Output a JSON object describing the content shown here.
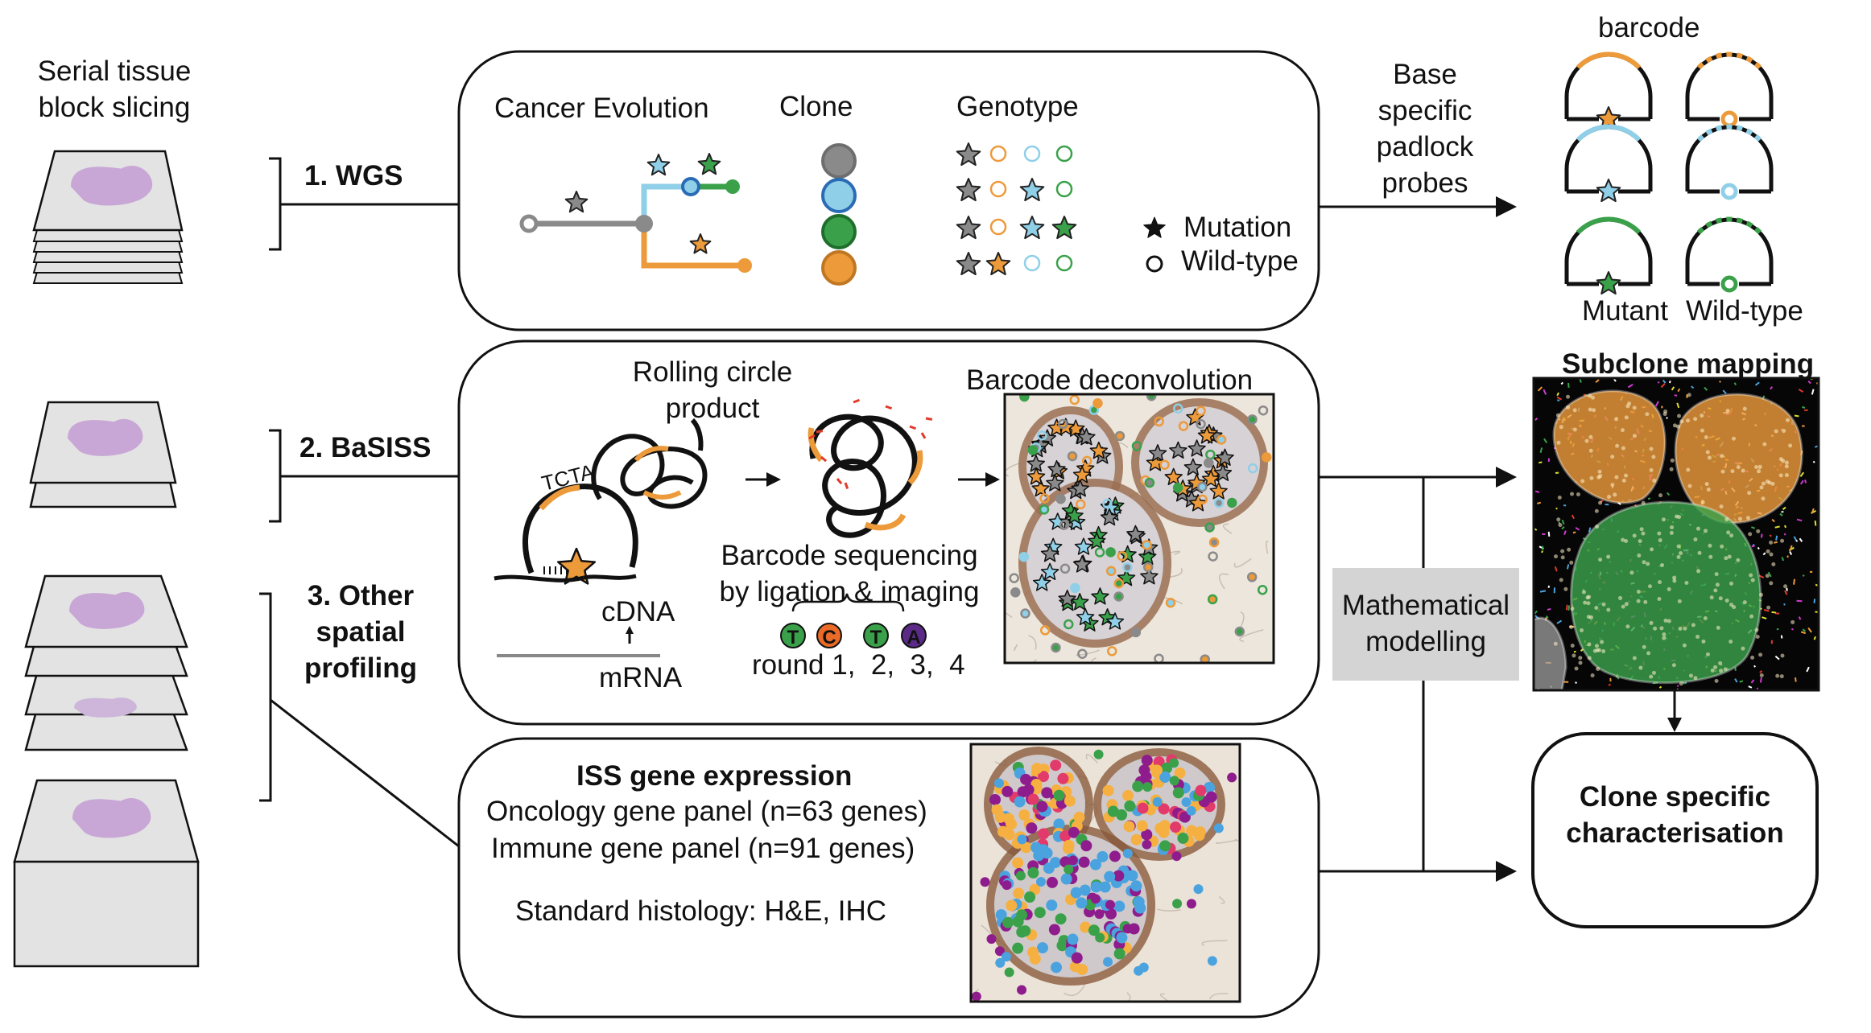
{
  "left": {
    "slicing": "Serial tissue\nblock slicing",
    "wgs": "1. WGS",
    "basiss": "2. BaSISS",
    "other": "3. Other\nspatial\nprofiling"
  },
  "wgs_panel": {
    "cancer_evolution": "Cancer Evolution",
    "clone": "Clone",
    "genotype": "Genotype",
    "mutation": "Mutation",
    "wild_type": "Wild-type"
  },
  "probes": {
    "arrow_label": "Base\nspecific\npadlock\nprobes",
    "barcode": "barcode",
    "mutant": "Mutant",
    "wild_type": "Wild-type"
  },
  "basiss_panel": {
    "rolling": "Rolling circle\nproduct",
    "tcta": "TCTA",
    "cdna": "cDNA",
    "mrna": "mRNA",
    "barcode_seq": "Barcode sequencing\nby ligation & imaging",
    "bases": [
      "T",
      "C",
      "T",
      "A"
    ],
    "rounds": "round 1,  2,  3,  4",
    "deconvolution": "Barcode deconvolution"
  },
  "iss_panel": {
    "title": "ISS gene expression",
    "oncology": "Oncology gene panel (n=63 genes)",
    "immune": "Immune gene panel (n=91 genes)",
    "histology": "Standard histology: H&E, IHC"
  },
  "right": {
    "subclone_mapping": "Subclone mapping",
    "math_modelling": "Mathematical\nmodelling",
    "clone_specific": "Clone specific\ncharacterisation"
  },
  "colors": {
    "gray": "#8a8a8a",
    "blue": "#8fcfe8",
    "green": "#3aa14a",
    "orange": "#ec9a3a",
    "purple": "#c8a7d6",
    "dark_purple": "#5b2a86",
    "tissue_bg": "#e8e0d6"
  }
}
